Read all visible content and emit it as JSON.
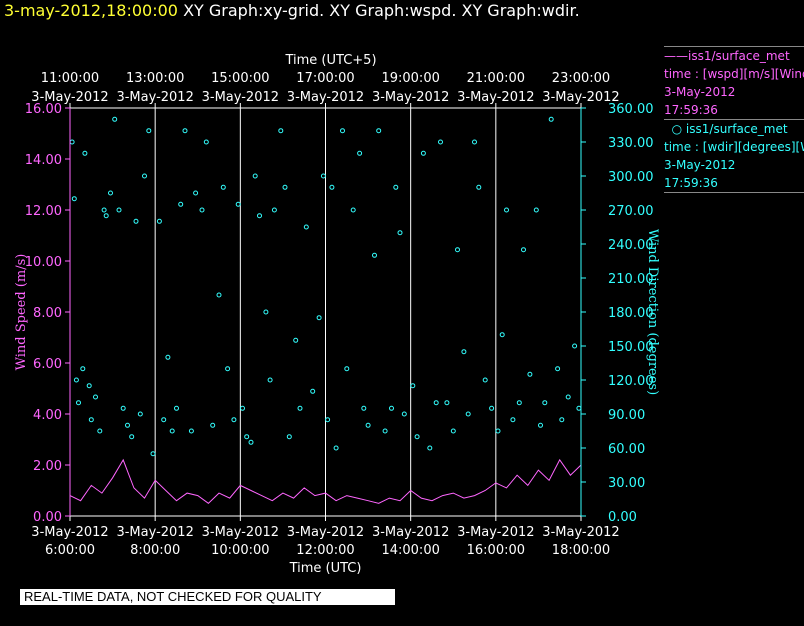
{
  "header": {
    "date": "3-may-2012,18:00:00",
    "graphs": "XY Graph:xy-grid.  XY Graph:wspd.  XY Graph:wdir."
  },
  "legend": {
    "wspd": {
      "name": "——iss1/surface_met",
      "desc": "time : [wspd][m/s][Wind",
      "date": "3-May-2012",
      "time": "17:59:36"
    },
    "wdir": {
      "name": "iss1/surface_met",
      "desc": "time : [wdir][degrees][Wi",
      "date": "3-May-2012",
      "time": "17:59:36"
    }
  },
  "disclaimer": "REAL-TIME DATA, NOT CHECKED FOR QUALITY",
  "colors": {
    "background": "#000000",
    "axis": "#ffffff",
    "wspd": "#ff66ff",
    "wdir": "#33ffff",
    "title_date": "#ffff33"
  },
  "chart_data": {
    "type": "line+scatter",
    "title": "XY Graph: wspd / wdir",
    "x_bottom": {
      "label": "Time (UTC)",
      "range_hours": [
        6.0,
        18.0
      ],
      "ticks": [
        {
          "date": "3-May-2012",
          "time": "6:00:00",
          "hour": 6
        },
        {
          "date": "3-May-2012",
          "time": "8:00:00",
          "hour": 8
        },
        {
          "date": "3-May-2012",
          "time": "10:00:00",
          "hour": 10
        },
        {
          "date": "3-May-2012",
          "time": "12:00:00",
          "hour": 12
        },
        {
          "date": "3-May-2012",
          "time": "14:00:00",
          "hour": 14
        },
        {
          "date": "3-May-2012",
          "time": "16:00:00",
          "hour": 16
        },
        {
          "date": "3-May-2012",
          "time": "18:00:00",
          "hour": 18
        }
      ]
    },
    "x_top": {
      "label": "Time (UTC+5)",
      "ticks": [
        {
          "date": "3-May-2012",
          "time": "11:00:00",
          "hour": 6
        },
        {
          "date": "3-May-2012",
          "time": "13:00:00",
          "hour": 8
        },
        {
          "date": "3-May-2012",
          "time": "15:00:00",
          "hour": 10
        },
        {
          "date": "3-May-2012",
          "time": "17:00:00",
          "hour": 12
        },
        {
          "date": "3-May-2012",
          "time": "19:00:00",
          "hour": 14
        },
        {
          "date": "3-May-2012",
          "time": "21:00:00",
          "hour": 16
        },
        {
          "date": "3-May-2012",
          "time": "23:00:00",
          "hour": 18
        }
      ]
    },
    "y_left": {
      "label": "Wind Speed (m/s)",
      "range": [
        0,
        16
      ],
      "ticks": [
        "0.00",
        "2.00",
        "4.00",
        "6.00",
        "8.00",
        "10.00",
        "12.00",
        "14.00",
        "16.00"
      ]
    },
    "y_right": {
      "label": "Wind Direction (degrees)",
      "range": [
        0,
        360
      ],
      "ticks": [
        "0.00",
        "30.00",
        "60.00",
        "90.00",
        "120.00",
        "150.00",
        "180.00",
        "210.00",
        "240.00",
        "270.00",
        "300.00",
        "330.00",
        "360.00"
      ]
    },
    "gridlines_hours": [
      8,
      10,
      12,
      14,
      16
    ],
    "series": [
      {
        "name": "wspd",
        "axis": "left",
        "style": "line",
        "x_hours": [
          6.0,
          6.25,
          6.5,
          6.75,
          7.0,
          7.25,
          7.5,
          7.75,
          8.0,
          8.25,
          8.5,
          8.75,
          9.0,
          9.25,
          9.5,
          9.75,
          10.0,
          10.25,
          10.5,
          10.75,
          11.0,
          11.25,
          11.5,
          11.75,
          12.0,
          12.25,
          12.5,
          12.75,
          13.0,
          13.25,
          13.5,
          13.75,
          14.0,
          14.25,
          14.5,
          14.75,
          15.0,
          15.25,
          15.5,
          15.75,
          16.0,
          16.25,
          16.5,
          16.75,
          17.0,
          17.25,
          17.5,
          17.75,
          18.0
        ],
        "values": [
          0.8,
          0.6,
          1.2,
          0.9,
          1.5,
          2.2,
          1.1,
          0.7,
          1.4,
          1.0,
          0.6,
          0.9,
          0.8,
          0.5,
          0.9,
          0.7,
          1.2,
          1.0,
          0.8,
          0.6,
          0.9,
          0.7,
          1.1,
          0.8,
          0.9,
          0.6,
          0.8,
          0.7,
          0.6,
          0.5,
          0.7,
          0.6,
          1.0,
          0.7,
          0.6,
          0.8,
          0.9,
          0.7,
          0.8,
          1.0,
          1.3,
          1.1,
          1.6,
          1.2,
          1.8,
          1.4,
          2.2,
          1.6,
          2.0
        ]
      },
      {
        "name": "wdir",
        "axis": "right",
        "style": "scatter",
        "points": [
          [
            6.05,
            330
          ],
          [
            6.1,
            280
          ],
          [
            6.15,
            120
          ],
          [
            6.2,
            100
          ],
          [
            6.3,
            130
          ],
          [
            6.35,
            320
          ],
          [
            6.45,
            115
          ],
          [
            6.5,
            85
          ],
          [
            6.6,
            105
          ],
          [
            6.7,
            75
          ],
          [
            6.8,
            270
          ],
          [
            6.85,
            265
          ],
          [
            6.95,
            285
          ],
          [
            7.05,
            350
          ],
          [
            7.15,
            270
          ],
          [
            7.25,
            95
          ],
          [
            7.35,
            80
          ],
          [
            7.45,
            70
          ],
          [
            7.55,
            260
          ],
          [
            7.65,
            90
          ],
          [
            7.75,
            300
          ],
          [
            7.85,
            340
          ],
          [
            7.95,
            55
          ],
          [
            8.1,
            260
          ],
          [
            8.2,
            85
          ],
          [
            8.3,
            140
          ],
          [
            8.4,
            75
          ],
          [
            8.5,
            95
          ],
          [
            8.6,
            275
          ],
          [
            8.7,
            340
          ],
          [
            8.85,
            75
          ],
          [
            8.95,
            285
          ],
          [
            9.1,
            270
          ],
          [
            9.2,
            330
          ],
          [
            9.35,
            80
          ],
          [
            9.5,
            195
          ],
          [
            9.6,
            290
          ],
          [
            9.7,
            130
          ],
          [
            9.85,
            85
          ],
          [
            9.95,
            275
          ],
          [
            10.05,
            95
          ],
          [
            10.15,
            70
          ],
          [
            10.25,
            65
          ],
          [
            10.35,
            300
          ],
          [
            10.45,
            265
          ],
          [
            10.6,
            180
          ],
          [
            10.7,
            120
          ],
          [
            10.8,
            270
          ],
          [
            10.95,
            340
          ],
          [
            11.05,
            290
          ],
          [
            11.15,
            70
          ],
          [
            11.3,
            155
          ],
          [
            11.4,
            95
          ],
          [
            11.55,
            255
          ],
          [
            11.7,
            110
          ],
          [
            11.85,
            175
          ],
          [
            11.95,
            300
          ],
          [
            12.05,
            85
          ],
          [
            12.15,
            290
          ],
          [
            12.25,
            60
          ],
          [
            12.4,
            340
          ],
          [
            12.5,
            130
          ],
          [
            12.65,
            270
          ],
          [
            12.8,
            320
          ],
          [
            12.9,
            95
          ],
          [
            13.0,
            80
          ],
          [
            13.15,
            230
          ],
          [
            13.25,
            340
          ],
          [
            13.4,
            75
          ],
          [
            13.55,
            95
          ],
          [
            13.65,
            290
          ],
          [
            13.75,
            250
          ],
          [
            13.85,
            90
          ],
          [
            14.05,
            115
          ],
          [
            14.15,
            70
          ],
          [
            14.3,
            320
          ],
          [
            14.45,
            60
          ],
          [
            14.6,
            100
          ],
          [
            14.7,
            330
          ],
          [
            14.85,
            100
          ],
          [
            15.0,
            75
          ],
          [
            15.1,
            235
          ],
          [
            15.25,
            145
          ],
          [
            15.35,
            90
          ],
          [
            15.5,
            330
          ],
          [
            15.6,
            290
          ],
          [
            15.75,
            120
          ],
          [
            15.9,
            95
          ],
          [
            16.05,
            75
          ],
          [
            16.15,
            160
          ],
          [
            16.25,
            270
          ],
          [
            16.4,
            85
          ],
          [
            16.55,
            100
          ],
          [
            16.65,
            235
          ],
          [
            16.8,
            125
          ],
          [
            16.95,
            270
          ],
          [
            17.05,
            80
          ],
          [
            17.15,
            100
          ],
          [
            17.3,
            350
          ],
          [
            17.45,
            130
          ],
          [
            17.55,
            85
          ],
          [
            17.7,
            105
          ],
          [
            17.85,
            150
          ],
          [
            17.95,
            95
          ]
        ]
      }
    ]
  }
}
